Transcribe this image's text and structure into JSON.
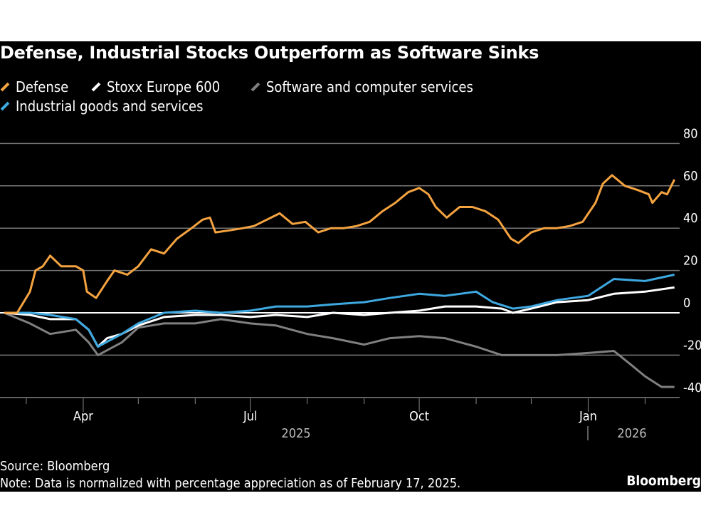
{
  "chart_data": {
    "type": "line",
    "title": "Defense, Industrial Stocks Outperform as Software Sinks",
    "ylim": [
      -40,
      80
    ],
    "yticks": [
      80,
      60,
      40,
      20,
      0,
      -20,
      -40
    ],
    "ytick_labels": [
      "80",
      "60",
      "40",
      "20",
      "0",
      "-20",
      "-40"
    ],
    "xticks": [
      "Apr",
      "Jul",
      "Oct",
      "Jan"
    ],
    "xtick_dates": [
      "2025-04-01",
      "2025-07-01",
      "2025-10-01",
      "2026-01-01"
    ],
    "year_labels": [
      "2025",
      "2026"
    ],
    "grid": true,
    "legend_placement": "top-left",
    "series": [
      {
        "name": "Defense",
        "color": "#f4a340",
        "points": [
          [
            "2025-02-17",
            0
          ],
          [
            "2025-02-24",
            0
          ],
          [
            "2025-03-03",
            10
          ],
          [
            "2025-03-06",
            20
          ],
          [
            "2025-03-10",
            22
          ],
          [
            "2025-03-14",
            27
          ],
          [
            "2025-03-20",
            22
          ],
          [
            "2025-03-28",
            22
          ],
          [
            "2025-04-01",
            20
          ],
          [
            "2025-04-03",
            10
          ],
          [
            "2025-04-08",
            7
          ],
          [
            "2025-04-14",
            15
          ],
          [
            "2025-04-18",
            20
          ],
          [
            "2025-04-25",
            18
          ],
          [
            "2025-05-01",
            22
          ],
          [
            "2025-05-08",
            30
          ],
          [
            "2025-05-15",
            28
          ],
          [
            "2025-05-22",
            35
          ],
          [
            "2025-05-30",
            40
          ],
          [
            "2025-06-05",
            44
          ],
          [
            "2025-06-09",
            45
          ],
          [
            "2025-06-12",
            38
          ],
          [
            "2025-06-20",
            39
          ],
          [
            "2025-06-27",
            40
          ],
          [
            "2025-07-03",
            41
          ],
          [
            "2025-07-10",
            44
          ],
          [
            "2025-07-17",
            47
          ],
          [
            "2025-07-24",
            42
          ],
          [
            "2025-07-31",
            43
          ],
          [
            "2025-08-07",
            38
          ],
          [
            "2025-08-14",
            40
          ],
          [
            "2025-08-21",
            40
          ],
          [
            "2025-08-28",
            41
          ],
          [
            "2025-09-04",
            43
          ],
          [
            "2025-09-11",
            48
          ],
          [
            "2025-09-18",
            52
          ],
          [
            "2025-09-25",
            57
          ],
          [
            "2025-10-01",
            59
          ],
          [
            "2025-10-06",
            56
          ],
          [
            "2025-10-10",
            50
          ],
          [
            "2025-10-16",
            45
          ],
          [
            "2025-10-23",
            50
          ],
          [
            "2025-10-30",
            50
          ],
          [
            "2025-11-06",
            48
          ],
          [
            "2025-11-13",
            44
          ],
          [
            "2025-11-20",
            35
          ],
          [
            "2025-11-24",
            33
          ],
          [
            "2025-12-01",
            38
          ],
          [
            "2025-12-08",
            40
          ],
          [
            "2025-12-15",
            40
          ],
          [
            "2025-12-22",
            41
          ],
          [
            "2025-12-29",
            43
          ],
          [
            "2026-01-05",
            52
          ],
          [
            "2026-01-09",
            61
          ],
          [
            "2026-01-14",
            65
          ],
          [
            "2026-01-21",
            60
          ],
          [
            "2026-01-28",
            58
          ],
          [
            "2026-02-03",
            56
          ],
          [
            "2026-02-05",
            52
          ],
          [
            "2026-02-10",
            57
          ],
          [
            "2026-02-13",
            56
          ],
          [
            "2026-02-17",
            63
          ]
        ]
      },
      {
        "name": "Stoxx Europe 600",
        "color": "#ffffff",
        "points": [
          [
            "2025-02-17",
            0
          ],
          [
            "2025-03-03",
            -1
          ],
          [
            "2025-03-14",
            -3
          ],
          [
            "2025-03-28",
            -3
          ],
          [
            "2025-04-04",
            -8
          ],
          [
            "2025-04-09",
            -16
          ],
          [
            "2025-04-14",
            -12
          ],
          [
            "2025-04-22",
            -10
          ],
          [
            "2025-05-01",
            -6
          ],
          [
            "2025-05-15",
            -2
          ],
          [
            "2025-06-01",
            -1
          ],
          [
            "2025-06-15",
            -1
          ],
          [
            "2025-07-01",
            -2
          ],
          [
            "2025-07-15",
            -1
          ],
          [
            "2025-08-01",
            -2
          ],
          [
            "2025-08-15",
            0
          ],
          [
            "2025-09-01",
            -1
          ],
          [
            "2025-09-15",
            0
          ],
          [
            "2025-10-01",
            1
          ],
          [
            "2025-10-15",
            3
          ],
          [
            "2025-11-01",
            3
          ],
          [
            "2025-11-15",
            2
          ],
          [
            "2025-11-21",
            0
          ],
          [
            "2025-12-01",
            2
          ],
          [
            "2025-12-15",
            5
          ],
          [
            "2026-01-01",
            6
          ],
          [
            "2026-01-15",
            9
          ],
          [
            "2026-02-01",
            10
          ],
          [
            "2026-02-17",
            12
          ]
        ]
      },
      {
        "name": "Software and computer services",
        "color": "#808080",
        "points": [
          [
            "2025-02-17",
            0
          ],
          [
            "2025-03-03",
            -5
          ],
          [
            "2025-03-14",
            -10
          ],
          [
            "2025-03-28",
            -8
          ],
          [
            "2025-04-04",
            -14
          ],
          [
            "2025-04-09",
            -20
          ],
          [
            "2025-04-22",
            -14
          ],
          [
            "2025-05-01",
            -7
          ],
          [
            "2025-05-15",
            -5
          ],
          [
            "2025-06-01",
            -5
          ],
          [
            "2025-06-15",
            -3
          ],
          [
            "2025-07-01",
            -5
          ],
          [
            "2025-07-15",
            -6
          ],
          [
            "2025-08-01",
            -10
          ],
          [
            "2025-08-15",
            -12
          ],
          [
            "2025-09-01",
            -15
          ],
          [
            "2025-09-15",
            -12
          ],
          [
            "2025-10-01",
            -11
          ],
          [
            "2025-10-15",
            -12
          ],
          [
            "2025-11-01",
            -16
          ],
          [
            "2025-11-15",
            -20
          ],
          [
            "2025-12-01",
            -20
          ],
          [
            "2025-12-15",
            -20
          ],
          [
            "2026-01-01",
            -19
          ],
          [
            "2026-01-15",
            -18
          ],
          [
            "2026-01-25",
            -25
          ],
          [
            "2026-02-01",
            -30
          ],
          [
            "2026-02-10",
            -35
          ],
          [
            "2026-02-17",
            -35
          ]
        ]
      },
      {
        "name": "Industrial goods and services",
        "color": "#3ea8e0",
        "points": [
          [
            "2025-02-17",
            0
          ],
          [
            "2025-03-03",
            0
          ],
          [
            "2025-03-14",
            -1
          ],
          [
            "2025-03-28",
            -3
          ],
          [
            "2025-04-04",
            -8
          ],
          [
            "2025-04-09",
            -16
          ],
          [
            "2025-04-22",
            -10
          ],
          [
            "2025-05-01",
            -5
          ],
          [
            "2025-05-15",
            0
          ],
          [
            "2025-06-01",
            1
          ],
          [
            "2025-06-15",
            0
          ],
          [
            "2025-07-01",
            1
          ],
          [
            "2025-07-15",
            3
          ],
          [
            "2025-08-01",
            3
          ],
          [
            "2025-08-15",
            4
          ],
          [
            "2025-09-01",
            5
          ],
          [
            "2025-09-15",
            7
          ],
          [
            "2025-10-01",
            9
          ],
          [
            "2025-10-15",
            8
          ],
          [
            "2025-11-01",
            10
          ],
          [
            "2025-11-10",
            5
          ],
          [
            "2025-11-21",
            2
          ],
          [
            "2025-12-01",
            3
          ],
          [
            "2025-12-15",
            6
          ],
          [
            "2026-01-01",
            8
          ],
          [
            "2026-01-15",
            16
          ],
          [
            "2026-02-01",
            15
          ],
          [
            "2026-02-17",
            18
          ]
        ]
      }
    ],
    "source": "Source: Bloomberg",
    "note": "Note: Data is normalized with percentage appreciation as of February 17, 2025.",
    "logo": "Bloomberg"
  }
}
